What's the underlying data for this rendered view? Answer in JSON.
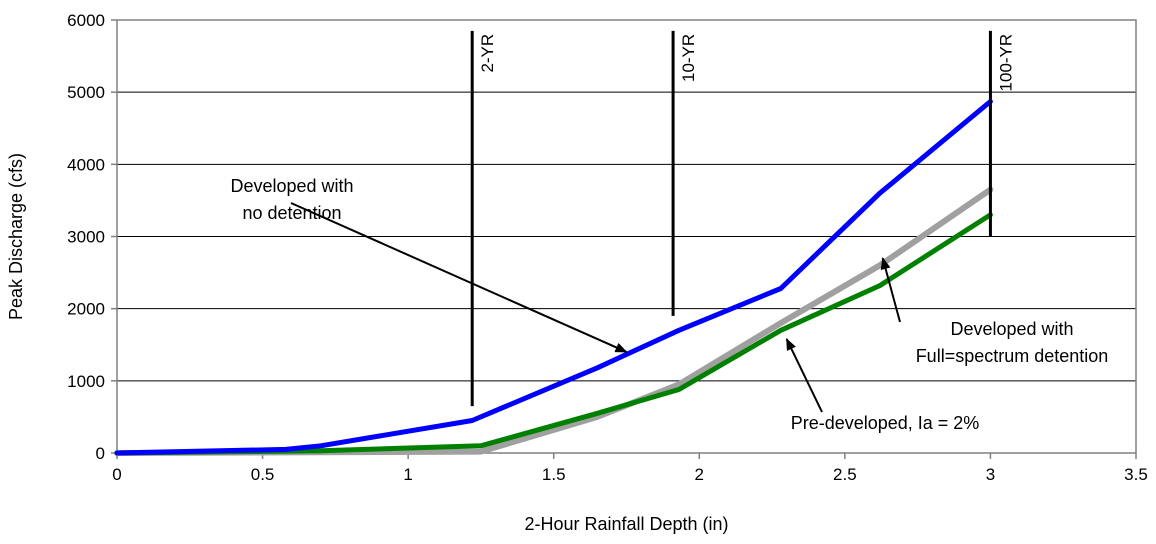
{
  "chart_data": {
    "type": "line",
    "xlabel": "2-Hour Rainfall Depth (in)",
    "ylabel": "Peak Discharge (cfs)",
    "xlim": [
      0,
      3.5
    ],
    "ylim": [
      0,
      6000
    ],
    "xticks": [
      0,
      0.5,
      1,
      1.5,
      2,
      2.5,
      3,
      3.5
    ],
    "xtick_labels": [
      "0",
      "0.5",
      "1",
      "1.5",
      "2",
      "2.5",
      "3",
      "3.5"
    ],
    "yticks": [
      0,
      1000,
      2000,
      3000,
      4000,
      5000,
      6000
    ],
    "ytick_labels": [
      "0",
      "1000",
      "2000",
      "3000",
      "4000",
      "5000",
      "6000"
    ],
    "grid": "horizontal",
    "legend": "none",
    "series": [
      {
        "name": "Developed with no detention",
        "color": "#0000ff",
        "x": [
          0,
          0.58,
          0.7,
          1.22,
          1.65,
          1.93,
          2.28,
          2.62,
          3.0
        ],
        "y": [
          0,
          50,
          100,
          450,
          1180,
          1700,
          2280,
          3600,
          4870
        ]
      },
      {
        "name": "Developed with Full=spectrum detention",
        "color": "#a0a0a0",
        "x": [
          0,
          1.25,
          1.65,
          1.93,
          2.28,
          2.62,
          3.0
        ],
        "y": [
          0,
          20,
          500,
          950,
          1800,
          2600,
          3650
        ]
      },
      {
        "name": "Pre-developed, Ia = 2%",
        "color": "#008000",
        "x": [
          0,
          0.7,
          1.25,
          1.65,
          1.93,
          2.28,
          2.62,
          3.0
        ],
        "y": [
          0,
          30,
          100,
          550,
          880,
          1700,
          2320,
          3300
        ]
      }
    ],
    "return_periods": [
      {
        "label": "2-YR",
        "x": 1.22,
        "y_top": 5850,
        "y_bottom": 650
      },
      {
        "label": "10-YR",
        "x": 1.91,
        "y_top": 5850,
        "y_bottom": 1900
      },
      {
        "label": "100-YR",
        "x": 3.0,
        "y_top": 5850,
        "y_bottom": 3000
      }
    ],
    "annotations": [
      {
        "text_lines": [
          "Developed with",
          "no detention"
        ],
        "arrow_to": [
          1.75,
          1400
        ]
      },
      {
        "text_lines": [
          "Developed with",
          "Full=spectrum detention"
        ],
        "arrow_to": [
          2.63,
          2700
        ]
      },
      {
        "text_lines": [
          "Pre-developed, Ia = 2%"
        ],
        "arrow_to": [
          2.3,
          1580
        ]
      }
    ]
  }
}
